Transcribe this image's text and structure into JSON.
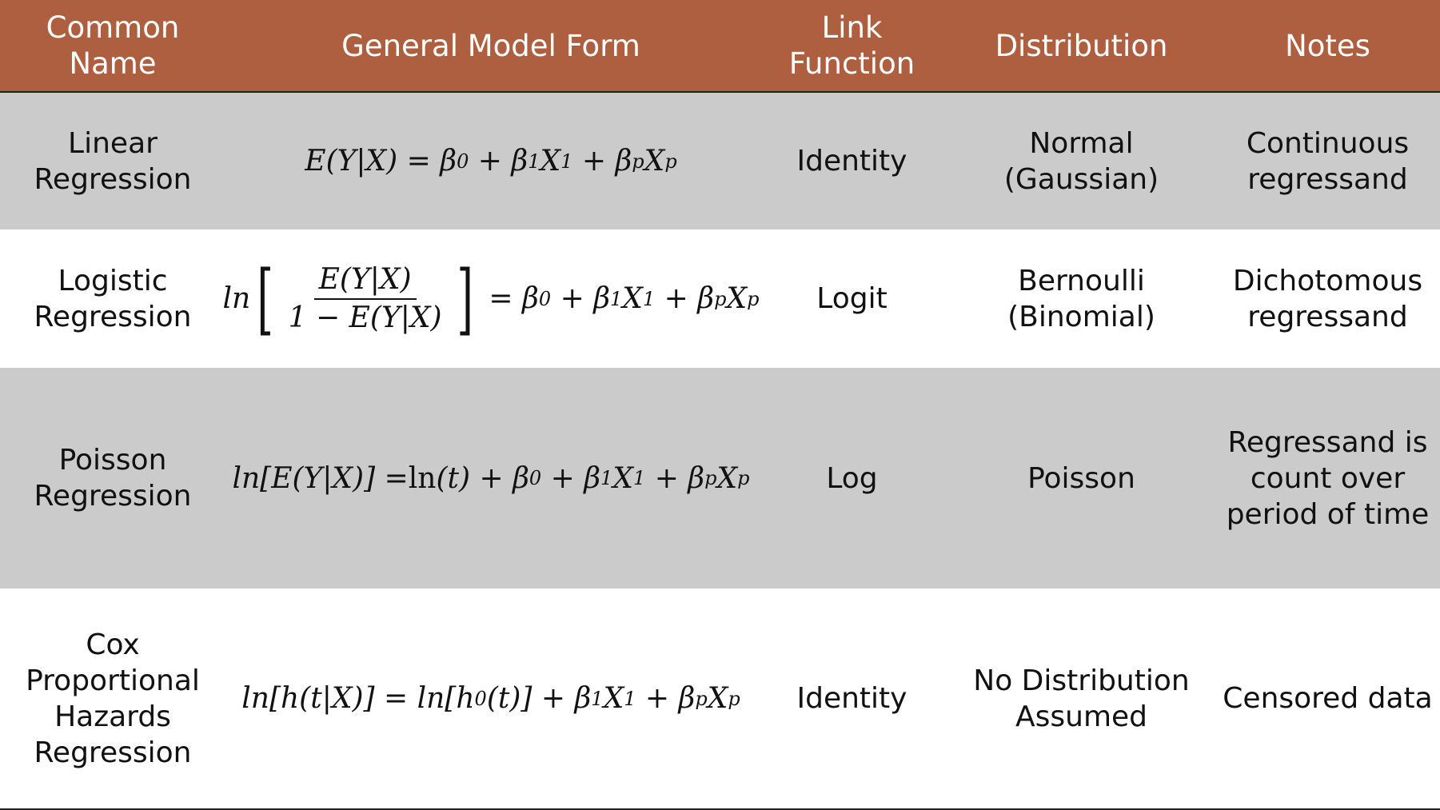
{
  "header": {
    "col1": "Common Name",
    "col2": "General Model Form",
    "col3": "Link Function",
    "col4": "Distribution",
    "col5": "Notes"
  },
  "rows": [
    {
      "name": "Linear Regression",
      "formula": "E(Y|X) = β0 + β1X1 + βpXp",
      "link": "Identity",
      "distribution": "Normal (Gaussian)",
      "notes": "Continuous regressand"
    },
    {
      "name": "Logistic Regression",
      "formula_numerator": "E(Y|X)",
      "formula_denominator": "1 − E(Y|X)",
      "formula_rhs": "= β0 + β1X1 + βpXp",
      "link": "Logit",
      "distribution": "Bernoulli (Binomial)",
      "notes": "Dichotomous regressand"
    },
    {
      "name": "Poisson Regression",
      "formula": "ln[E(Y|X)] = ln(t) + β0 + β1X1 + βpXp",
      "link": "Log",
      "distribution": "Poisson",
      "notes": "Regressand is count over period of time"
    },
    {
      "name": "Cox Proportional Hazards Regression",
      "formula": "ln[h(t|X)] = ln[h0(t)] + β1X1 + βpXp",
      "link": "Identity",
      "distribution": "No Distribution Assumed",
      "notes": "Censored data"
    }
  ],
  "colors": {
    "header_bg": "#ad5f40",
    "header_text": "#ffffff",
    "shaded_row": "#cbcbcb",
    "plain_row": "#ffffff"
  }
}
